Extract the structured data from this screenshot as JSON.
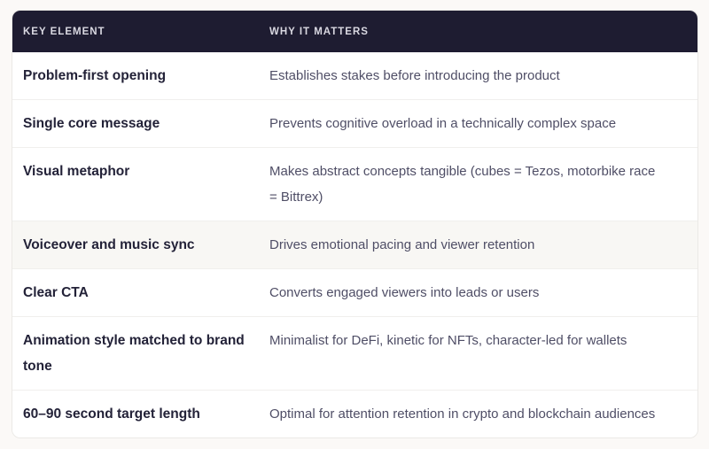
{
  "page": {
    "background_color": "#fbf9f7"
  },
  "table": {
    "title": "key-elements-table",
    "colors": {
      "header_bg": "#1e1c31",
      "header_text": "#d9d8e1",
      "key_text": "#232238",
      "description_text": "#4f4e66",
      "row_divider": "#f0efed",
      "highlight_row_bg": "#f8f7f4",
      "card_border": "#ebe9e6"
    },
    "header": {
      "col1": "KEY ELEMENT",
      "col2": "WHY IT MATTERS"
    },
    "rows": [
      {
        "element": "Problem-first opening",
        "why": "Establishes stakes before introducing the product",
        "highlighted": false
      },
      {
        "element": "Single core message",
        "why": "Prevents cognitive overload in a technically complex space",
        "highlighted": false
      },
      {
        "element": "Visual metaphor",
        "why": "Makes abstract concepts tangible (cubes = Tezos, motorbike race = Bittrex)",
        "highlighted": false
      },
      {
        "element": "Voiceover and music sync",
        "why": "Drives emotional pacing and viewer retention",
        "highlighted": true
      },
      {
        "element": "Clear CTA",
        "why": "Converts engaged viewers into leads or users",
        "highlighted": false
      },
      {
        "element": "Animation style matched to brand tone",
        "why": "Minimalist for DeFi, kinetic for NFTs, character-led for wallets",
        "highlighted": false
      },
      {
        "element": "60–90 second target length",
        "why": "Optimal for attention retention in crypto and blockchain audiences",
        "highlighted": false
      }
    ]
  }
}
